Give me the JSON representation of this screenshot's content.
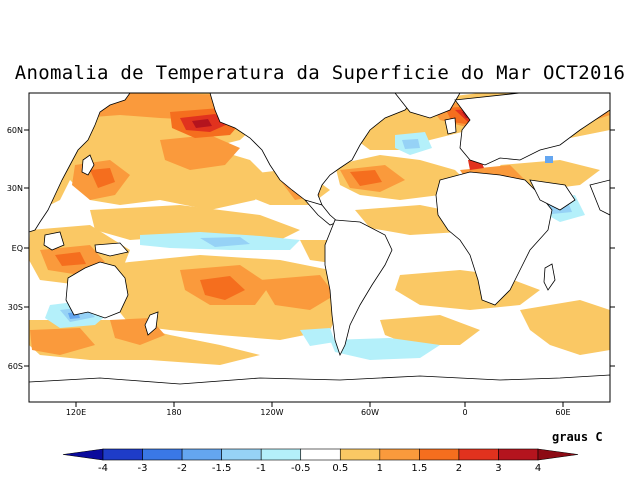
{
  "title": "Anomalia de Temperatura da Superficie do Mar OCT2016",
  "units_label": "graus C",
  "lat_labels": [
    "60N",
    "30N",
    "EQ",
    "30S",
    "60S"
  ],
  "lon_labels": [
    "120E",
    "180",
    "120W",
    "60W",
    "0",
    "60E"
  ],
  "colorbar": {
    "ticks": [
      "-4",
      "-3",
      "-2",
      "-1.5",
      "-1",
      "-0.5",
      "0.5",
      "1",
      "1.5",
      "2",
      "3",
      "4"
    ],
    "colors": [
      "#0a0a9c",
      "#1e3cc8",
      "#3a78e6",
      "#64a6f0",
      "#96d2f6",
      "#b4f0fa",
      "#ffffff",
      "#fac864",
      "#fa9a3c",
      "#f56e1e",
      "#e1321e",
      "#b4141e",
      "#8c0a14"
    ]
  },
  "palette": {
    "warm_light": "#fac864",
    "warm_mid": "#fa9a3c",
    "warm_strong": "#f56e1e",
    "warm_hot": "#e1321e",
    "warm_extreme": "#b4141e",
    "cool_light": "#b4f0fa",
    "cool_mid": "#96d2f6",
    "cool_strong": "#64a6f0"
  }
}
